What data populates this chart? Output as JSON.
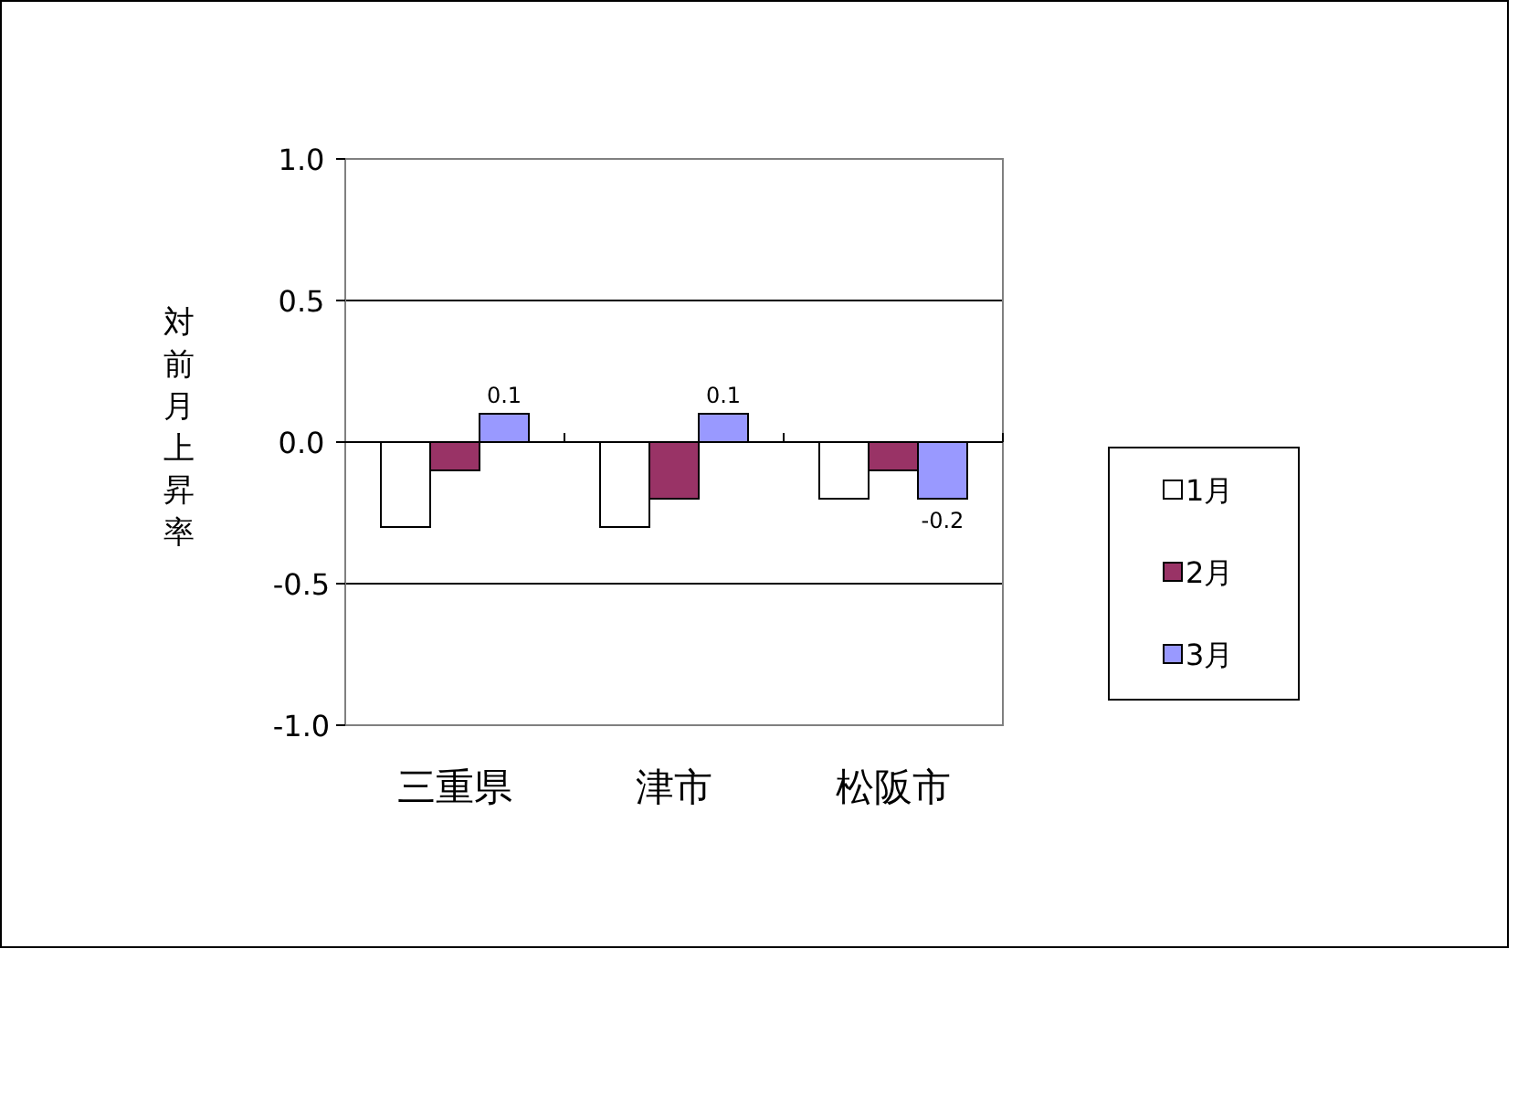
{
  "chart_data": {
    "type": "bar",
    "ylabel": "対前月上昇率",
    "categories": [
      "三重県",
      "津市",
      "松阪市"
    ],
    "series": [
      {
        "name": "1月",
        "color": "#ffffff",
        "values": [
          -0.3,
          -0.3,
          -0.2
        ]
      },
      {
        "name": "2月",
        "color": "#993366",
        "values": [
          -0.1,
          -0.2,
          -0.1
        ]
      },
      {
        "name": "3月",
        "color": "#9999ff",
        "values": [
          0.1,
          0.1,
          -0.2
        ],
        "value_labels": [
          "0.1",
          "0.1",
          "-0.2"
        ]
      }
    ],
    "ylim": [
      -1.0,
      1.0
    ],
    "yticks": [
      {
        "value": -1.0,
        "label": "-1.0"
      },
      {
        "value": -0.5,
        "label": "-0.5"
      },
      {
        "value": 0,
        "label": "0.0"
      },
      {
        "value": 0.5,
        "label": "0.5"
      },
      {
        "value": 1.0,
        "label": "1.0"
      }
    ],
    "grid": "y",
    "legend": "right"
  }
}
